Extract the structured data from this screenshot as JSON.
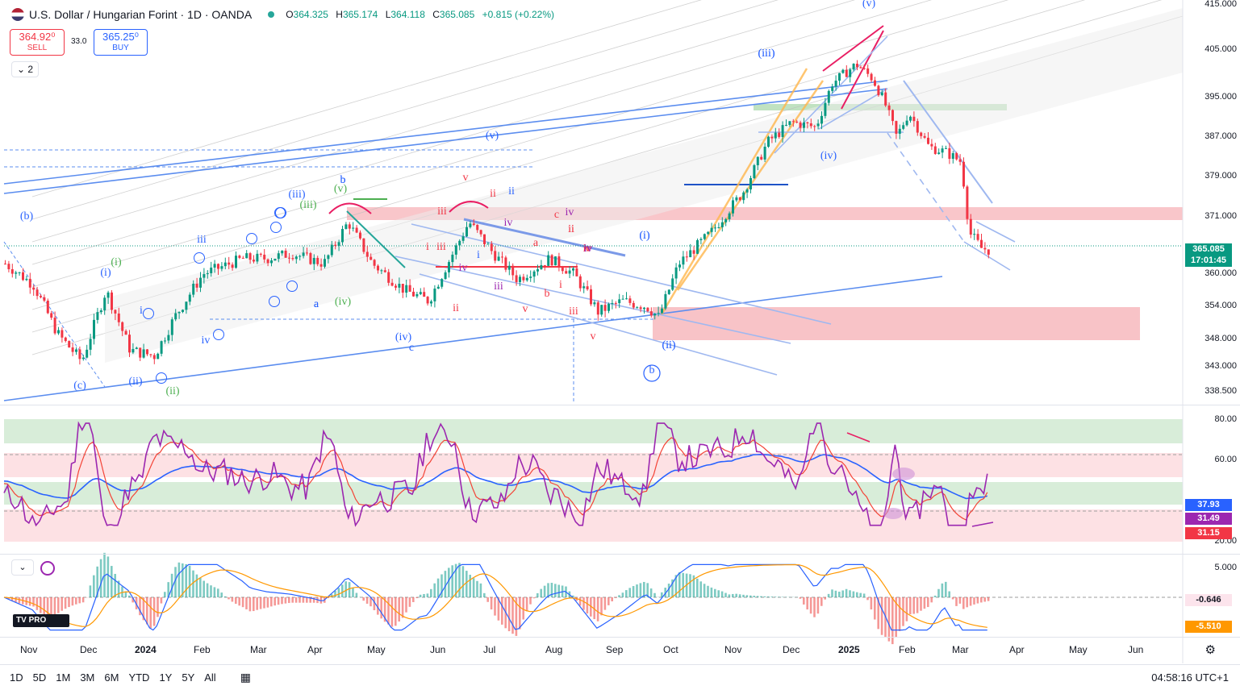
{
  "legend": {
    "title": "U.S. Dollar / Hungarian Forint · 1D · OANDA",
    "open_label": "O",
    "open": "364.325",
    "high_label": "H",
    "high": "365.174",
    "low_label": "L",
    "low": "364.118",
    "close_label": "C",
    "close": "365.085",
    "change": "+0.815 (+0.22%)"
  },
  "trade": {
    "sell_price": "364.92⁰",
    "sell_label": "SELL",
    "spread": "33.0",
    "buy_price": "365.25⁰",
    "buy_label": "BUY"
  },
  "indicators_collapse": "2",
  "price_axis": [
    "415.000",
    "405.000",
    "395.000",
    "387.000",
    "379.000",
    "371.000",
    "360.000",
    "354.000",
    "348.000",
    "343.000",
    "338.500"
  ],
  "price_tags": {
    "last_price": "365.085",
    "countdown": "17:01:45"
  },
  "rsi_axis": [
    "80.00",
    "60.00",
    "20.00"
  ],
  "rsi_tags": [
    "37.93",
    "31.49",
    "31.15"
  ],
  "macd_axis": [
    "5.000"
  ],
  "macd_tags": [
    "-0.646",
    "-5.510"
  ],
  "time_axis": [
    {
      "label": "Nov",
      "bold": false
    },
    {
      "label": "Dec",
      "bold": false
    },
    {
      "label": "2024",
      "bold": true
    },
    {
      "label": "Feb",
      "bold": false
    },
    {
      "label": "Mar",
      "bold": false
    },
    {
      "label": "Apr",
      "bold": false
    },
    {
      "label": "May",
      "bold": false
    },
    {
      "label": "Jun",
      "bold": false
    },
    {
      "label": "Jul",
      "bold": false
    },
    {
      "label": "Aug",
      "bold": false
    },
    {
      "label": "Sep",
      "bold": false
    },
    {
      "label": "Oct",
      "bold": false
    },
    {
      "label": "Nov",
      "bold": false
    },
    {
      "label": "Dec",
      "bold": false
    },
    {
      "label": "2025",
      "bold": true
    },
    {
      "label": "Feb",
      "bold": false
    },
    {
      "label": "Mar",
      "bold": false
    },
    {
      "label": "Apr",
      "bold": false
    },
    {
      "label": "May",
      "bold": false
    },
    {
      "label": "Jun",
      "bold": false
    }
  ],
  "timeframes": [
    "1D",
    "5D",
    "1M",
    "3M",
    "6M",
    "YTD",
    "1Y",
    "5Y",
    "All"
  ],
  "clock": "04:58:16 UTC+1",
  "logo_text": "PRO",
  "wave_labels": [
    "(v)",
    "(iii)",
    "(iv)",
    "(v)",
    "(i)",
    "(ii)",
    "b",
    "(b)",
    "(c)",
    "(i)",
    "(ii)",
    "(i)",
    "(ii)",
    "iii",
    "(iii)",
    "(v)",
    "b",
    "v",
    "iii",
    "ii",
    "ii",
    "c",
    "iv",
    "(iv)",
    "c",
    "a",
    "ii",
    "v",
    "iii",
    "iii",
    "v",
    "i",
    "a",
    "b",
    "i",
    "iv",
    "iv",
    "ii",
    "iv",
    "(i)",
    "(ii)",
    "b",
    "a",
    "(iv)",
    "(iii)",
    "i",
    "ii",
    "iii",
    "iv",
    "(iii)",
    "iv",
    "v",
    "i"
  ],
  "colors": {
    "up": "#089981",
    "down": "#f23645",
    "accent": "#2962ff",
    "rsi": "#9c27b0",
    "rsi_ma": "#2962ff",
    "rsi_ma2": "#f44336"
  }
}
